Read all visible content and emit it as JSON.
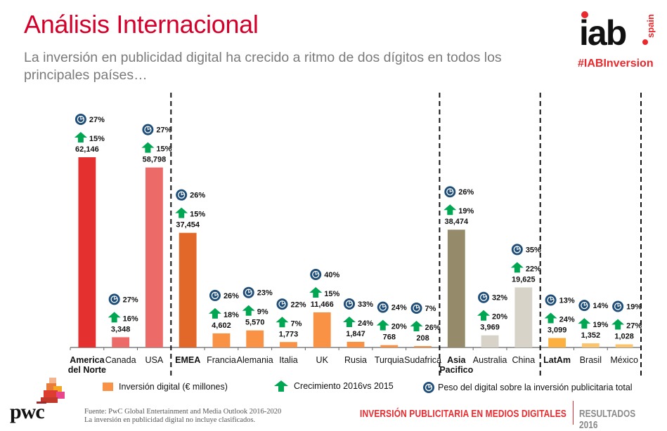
{
  "header": {
    "title": "Análisis Internacional",
    "subtitle": "La inversión en publicidad digital ha crecido a ritmo de dos dígitos en todos los principales países…"
  },
  "brand": {
    "iab_wordmark": "iab",
    "iab_region": "spain",
    "hashtag": "#IABInversion",
    "pwc": "pwc"
  },
  "colors": {
    "title": "#d4002a",
    "arrow": "#00a651",
    "peso_icon": "#1f4e79",
    "axis": "#555555"
  },
  "chart_data": {
    "type": "bar",
    "title": "",
    "xlabel": "",
    "ylabel": "Inversión digital (€ millones)",
    "ylim": [
      0,
      70000
    ],
    "grid": false,
    "legend_position": "bottom",
    "categories": [
      "America del Norte",
      "Canada",
      "USA",
      "EMEA",
      "Francia",
      "Alemania",
      "Italia",
      "UK",
      "Rusia",
      "Turquia",
      "Sudafrica",
      "Asia Pacifico",
      "Australia",
      "China",
      "LatAm",
      "Brasil",
      "México"
    ],
    "category_labels": [
      {
        "line1": "America",
        "line2": "del Norte",
        "bold": true
      },
      {
        "line1": "Canada",
        "line2": "",
        "bold": false
      },
      {
        "line1": "USA",
        "line2": "",
        "bold": false
      },
      {
        "line1": "EMEA",
        "line2": "",
        "bold": true
      },
      {
        "line1": "Francia",
        "line2": "",
        "bold": false
      },
      {
        "line1": "Alemania",
        "line2": "",
        "bold": false
      },
      {
        "line1": "Italia",
        "line2": "",
        "bold": false
      },
      {
        "line1": "UK",
        "line2": "",
        "bold": false
      },
      {
        "line1": "Rusia",
        "line2": "",
        "bold": false
      },
      {
        "line1": "Turquia",
        "line2": "",
        "bold": false
      },
      {
        "line1": "Sudafrica",
        "line2": "",
        "bold": false
      },
      {
        "line1": "Asia",
        "line2": "Pacifico",
        "bold": true
      },
      {
        "line1": "Australia",
        "line2": "",
        "bold": false
      },
      {
        "line1": "China",
        "line2": "",
        "bold": false
      },
      {
        "line1": "LatAm",
        "line2": "",
        "bold": true
      },
      {
        "line1": "Brasil",
        "line2": "",
        "bold": false
      },
      {
        "line1": "México",
        "line2": "",
        "bold": false
      }
    ],
    "series": [
      {
        "name": "Inversión digital (€ millones)",
        "values": [
          62146,
          3348,
          58798,
          37454,
          4602,
          5570,
          1773,
          11466,
          1847,
          768,
          208,
          38474,
          3969,
          19625,
          3099,
          1352,
          1028
        ],
        "value_labels": [
          "62,146",
          "3,348",
          "58,798",
          "37,454",
          "4,602",
          "5,570",
          "1,773",
          "11,466",
          "1,847",
          "768",
          "208",
          "38,474",
          "3,969",
          "19,625",
          "3,099",
          "1,352",
          "1,028"
        ]
      },
      {
        "name": "Crecimiento 2016vs 2015",
        "values": [
          15,
          16,
          15,
          15,
          18,
          9,
          7,
          15,
          24,
          20,
          26,
          19,
          20,
          22,
          24,
          19,
          27
        ],
        "unit": "%"
      },
      {
        "name": "Peso del digital sobre la inversión publicitaria total",
        "values": [
          27,
          27,
          27,
          26,
          26,
          23,
          22,
          40,
          33,
          24,
          7,
          26,
          32,
          35,
          13,
          14,
          19
        ],
        "unit": "%"
      }
    ],
    "bar_colors": [
      "#e4312f",
      "#ec6a67",
      "#ec6a67",
      "#e2682a",
      "#f99245",
      "#f99245",
      "#f99245",
      "#f99245",
      "#f99245",
      "#f99245",
      "#f99245",
      "#958b6b",
      "#d7d3c8",
      "#d7d3c8",
      "#fbb040",
      "#fcc46d",
      "#fcc46d"
    ],
    "region_dividers_after": [
      "USA",
      "Sudafrica",
      "China",
      "México"
    ],
    "legend": [
      {
        "label": "Inversión digital (€ millones)",
        "marker": "swatch"
      },
      {
        "label": "Crecimiento 2016vs 2015",
        "marker": "green-up-arrow"
      },
      {
        "label": "Peso del digital sobre la inversión publicitaria total",
        "marker": "pie-icon"
      }
    ]
  },
  "footer": {
    "source_line1": "Fuente: PwC Global Entertainment and Media Outlook 2016-2020",
    "source_line2": "La inversión en publicidad digital no incluye clasificados.",
    "report_title": "INVERSIÓN PUBLICITARIA EN MEDIOS DIGITALES",
    "report_edition": "RESULTADOS 2016"
  }
}
